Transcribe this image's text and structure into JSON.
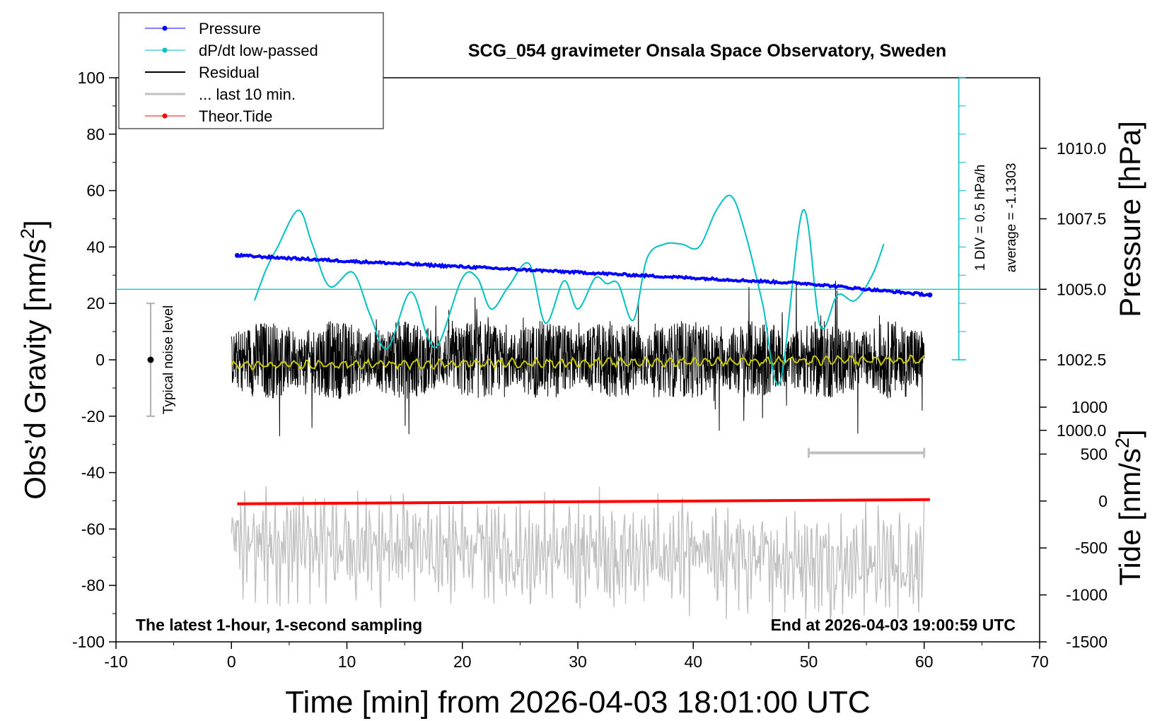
{
  "chart_data": {
    "type": "line",
    "title": "SCG_054 gravimeter Onsala Space Observatory, Sweden",
    "xlabel": "Time [min] from 2026-04-03 18:01:00 UTC",
    "ylabel_left": "Obs’d Gravity [nm/s²]",
    "ylabel_right_pressure": "Pressure [hPa]",
    "ylabel_right_tide": "Tide [nm/s²]",
    "xlim": [
      -10,
      70
    ],
    "ylim": [
      -100,
      100
    ],
    "pressure_lim": [
      992.5,
      1012.5
    ],
    "tide_lim": [
      -1500,
      1500
    ],
    "x_ticks": [
      "-10",
      "0",
      "10",
      "20",
      "30",
      "40",
      "50",
      "60",
      "70"
    ],
    "y_ticks": [
      "100",
      "80",
      "60",
      "40",
      "20",
      "0",
      "-20",
      "-40",
      "-60",
      "-80",
      "-100"
    ],
    "pressure_ticks": [
      "1010.0",
      "1007.5",
      "1005.0",
      "1002.5",
      "1000.0"
    ],
    "tide_ticks": [
      "1000",
      "500",
      "0",
      "-500",
      "-1000",
      "-1500"
    ],
    "legend": [
      "Pressure",
      "dP/dt low-passed",
      "Residual",
      "... last 10 min.",
      "Theor.Tide"
    ],
    "legend_position": "top-left",
    "annotations": {
      "bottom_left": "The latest 1-hour, 1-second sampling",
      "bottom_right": "End at 2026-04-03 19:00:59 UTC",
      "noise": "Typical noise level",
      "dpdt_scale": "1 DIV = 0.5 hPa/h",
      "average": "average = -1.1303"
    },
    "series": [
      {
        "name": "Pressure",
        "color": "#0000ff",
        "x": [
          0.5,
          5,
          10,
          15,
          20,
          25,
          30,
          35,
          40,
          45,
          50,
          55,
          60.5
        ],
        "y": [
          1006.2,
          1006.1,
          1006.0,
          1005.9,
          1005.8,
          1005.7,
          1005.6,
          1005.5,
          1005.4,
          1005.3,
          1005.2,
          1005.0,
          1004.8
        ]
      },
      {
        "name": "dP/dt low-passed",
        "color": "#00c0c0",
        "x": [
          2,
          3,
          4,
          5.8,
          7,
          8.5,
          10.5,
          12,
          13.5,
          15.5,
          17,
          18,
          20,
          21.3,
          22.5,
          24,
          25.8,
          27.2,
          28.8,
          30,
          31.5,
          32.5,
          33.5,
          34.8,
          36,
          37.5,
          39,
          40.5,
          42,
          43.3,
          44.5,
          46,
          47.5,
          49.5,
          51,
          52.5,
          54,
          55.5,
          56.5
        ],
        "y": [
          21,
          32,
          40,
          53,
          41,
          26,
          31,
          16,
          4,
          24,
          8,
          6,
          29,
          29,
          18,
          26,
          34,
          13,
          28,
          18,
          29,
          27,
          27,
          14,
          36,
          41,
          41,
          40,
          53,
          58,
          45,
          20,
          -8,
          53,
          12,
          23,
          21,
          30,
          41
        ]
      },
      {
        "name": "Residual",
        "color": "#000000",
        "x": [
          0,
          60
        ],
        "y": [
          0,
          0
        ]
      },
      {
        "name": "... last 10 min.",
        "color": "#c0c0c0",
        "x": [
          0,
          60
        ],
        "y": [
          -65,
          -72
        ]
      },
      {
        "name": "Theor.Tide",
        "color": "#ff0000",
        "x": [
          0.5,
          60.5
        ],
        "y": [
          -30,
          15
        ]
      }
    ],
    "noise_level": {
      "x": -7,
      "center": 0,
      "range": [
        -20,
        20
      ]
    },
    "bracket_10min": {
      "x": [
        50,
        60
      ],
      "y": -33
    }
  }
}
